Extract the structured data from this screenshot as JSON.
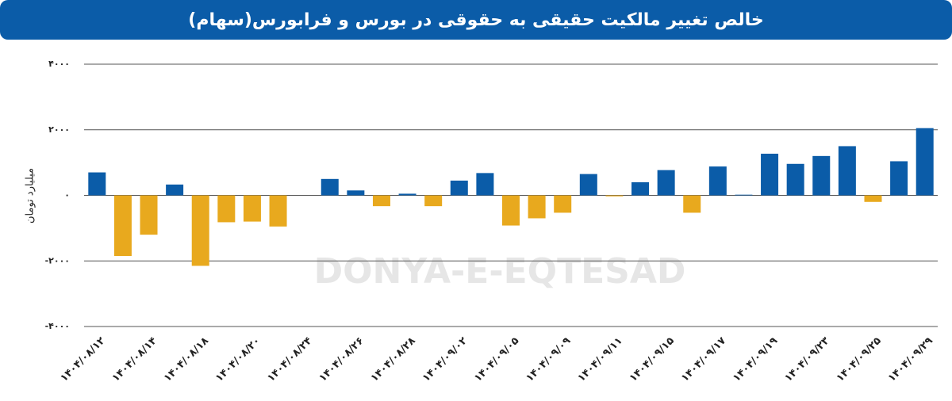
{
  "chart_data": {
    "type": "bar",
    "title": "خالص تغییر مالکیت حقیقی به حقوقی در بورس و فرابورس(سهام)",
    "y_label": "میلیارد تومان",
    "watermark": "DONYA-E-EQTESAD",
    "categories": [
      "۱۴۰۴/۰۸/۱۲",
      null,
      "۱۴۰۴/۰۸/۱۴",
      null,
      "۱۴۰۴/۰۸/۱۸",
      null,
      "۱۴۰۴/۰۸/۲۰",
      null,
      "۱۴۰۴/۰۸/۲۴",
      null,
      "۱۴۰۴/۰۸/۲۶",
      null,
      "۱۴۰۴/۰۸/۲۸",
      null,
      "۱۴۰۴/۰۹/۰۲",
      null,
      "۱۴۰۴/۰۹/۰۵",
      null,
      "۱۴۰۴/۰۹/۰۹",
      null,
      "۱۴۰۴/۰۹/۱۱",
      null,
      "۱۴۰۴/۰۹/۱۵",
      null,
      "۱۴۰۴/۰۹/۱۷",
      null,
      "۱۴۰۴/۰۹/۱۹",
      null,
      "۱۴۰۴/۰۹/۲۳",
      null,
      "۱۴۰۴/۰۹/۲۵",
      null,
      "۱۴۰۴/۰۹/۲۹"
    ],
    "values": [
      700,
      -1850,
      -1200,
      330,
      -2150,
      -820,
      -800,
      -950,
      0,
      500,
      150,
      -330,
      50,
      -330,
      450,
      680,
      -920,
      -700,
      -530,
      650,
      -30,
      400,
      770,
      -530,
      880,
      20,
      1270,
      960,
      1200,
      1500,
      -200,
      1040,
      2050
    ],
    "positive_color": "#0b5ca8",
    "negative_color": "#e8a91e",
    "ylim": [
      -4000,
      4000
    ],
    "yticks": [
      {
        "value": 4000,
        "label": "۴۰۰۰"
      },
      {
        "value": 2000,
        "label": "۲۰۰۰"
      },
      {
        "value": 0,
        "label": "۰"
      },
      {
        "value": -2000,
        "label": "-۲۰۰۰"
      },
      {
        "value": -4000,
        "label": "-۴۰۰۰"
      }
    ],
    "grid": true
  }
}
